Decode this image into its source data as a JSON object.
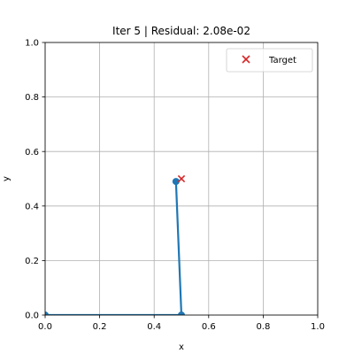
{
  "chart_data": {
    "type": "line",
    "title": "Iter 5 | Residual: 2.08e-02",
    "xlabel": "x",
    "ylabel": "y",
    "xlim": [
      0,
      1
    ],
    "ylim": [
      0,
      1
    ],
    "x_ticks": [
      "0.0",
      "0.2",
      "0.4",
      "0.6",
      "0.8",
      "1.0"
    ],
    "y_ticks": [
      "0.0",
      "0.2",
      "0.4",
      "0.6",
      "0.8",
      "1.0"
    ],
    "grid": true,
    "legend_position": "top-right",
    "series": [
      {
        "type": "line",
        "color": "#1f77b4",
        "points": [
          {
            "x": 0.0,
            "y": 0.0
          },
          {
            "x": 0.5,
            "y": 0.0
          },
          {
            "x": 0.48,
            "y": 0.49
          }
        ],
        "marked_points": [
          {
            "x": 0.0,
            "y": 0.0
          },
          {
            "x": 0.5,
            "y": 0.0
          },
          {
            "x": 0.48,
            "y": 0.49
          }
        ]
      },
      {
        "type": "scatter",
        "name": "Target",
        "marker": "x",
        "color": "#d62728",
        "points": [
          {
            "x": 0.5,
            "y": 0.5
          }
        ]
      }
    ]
  }
}
